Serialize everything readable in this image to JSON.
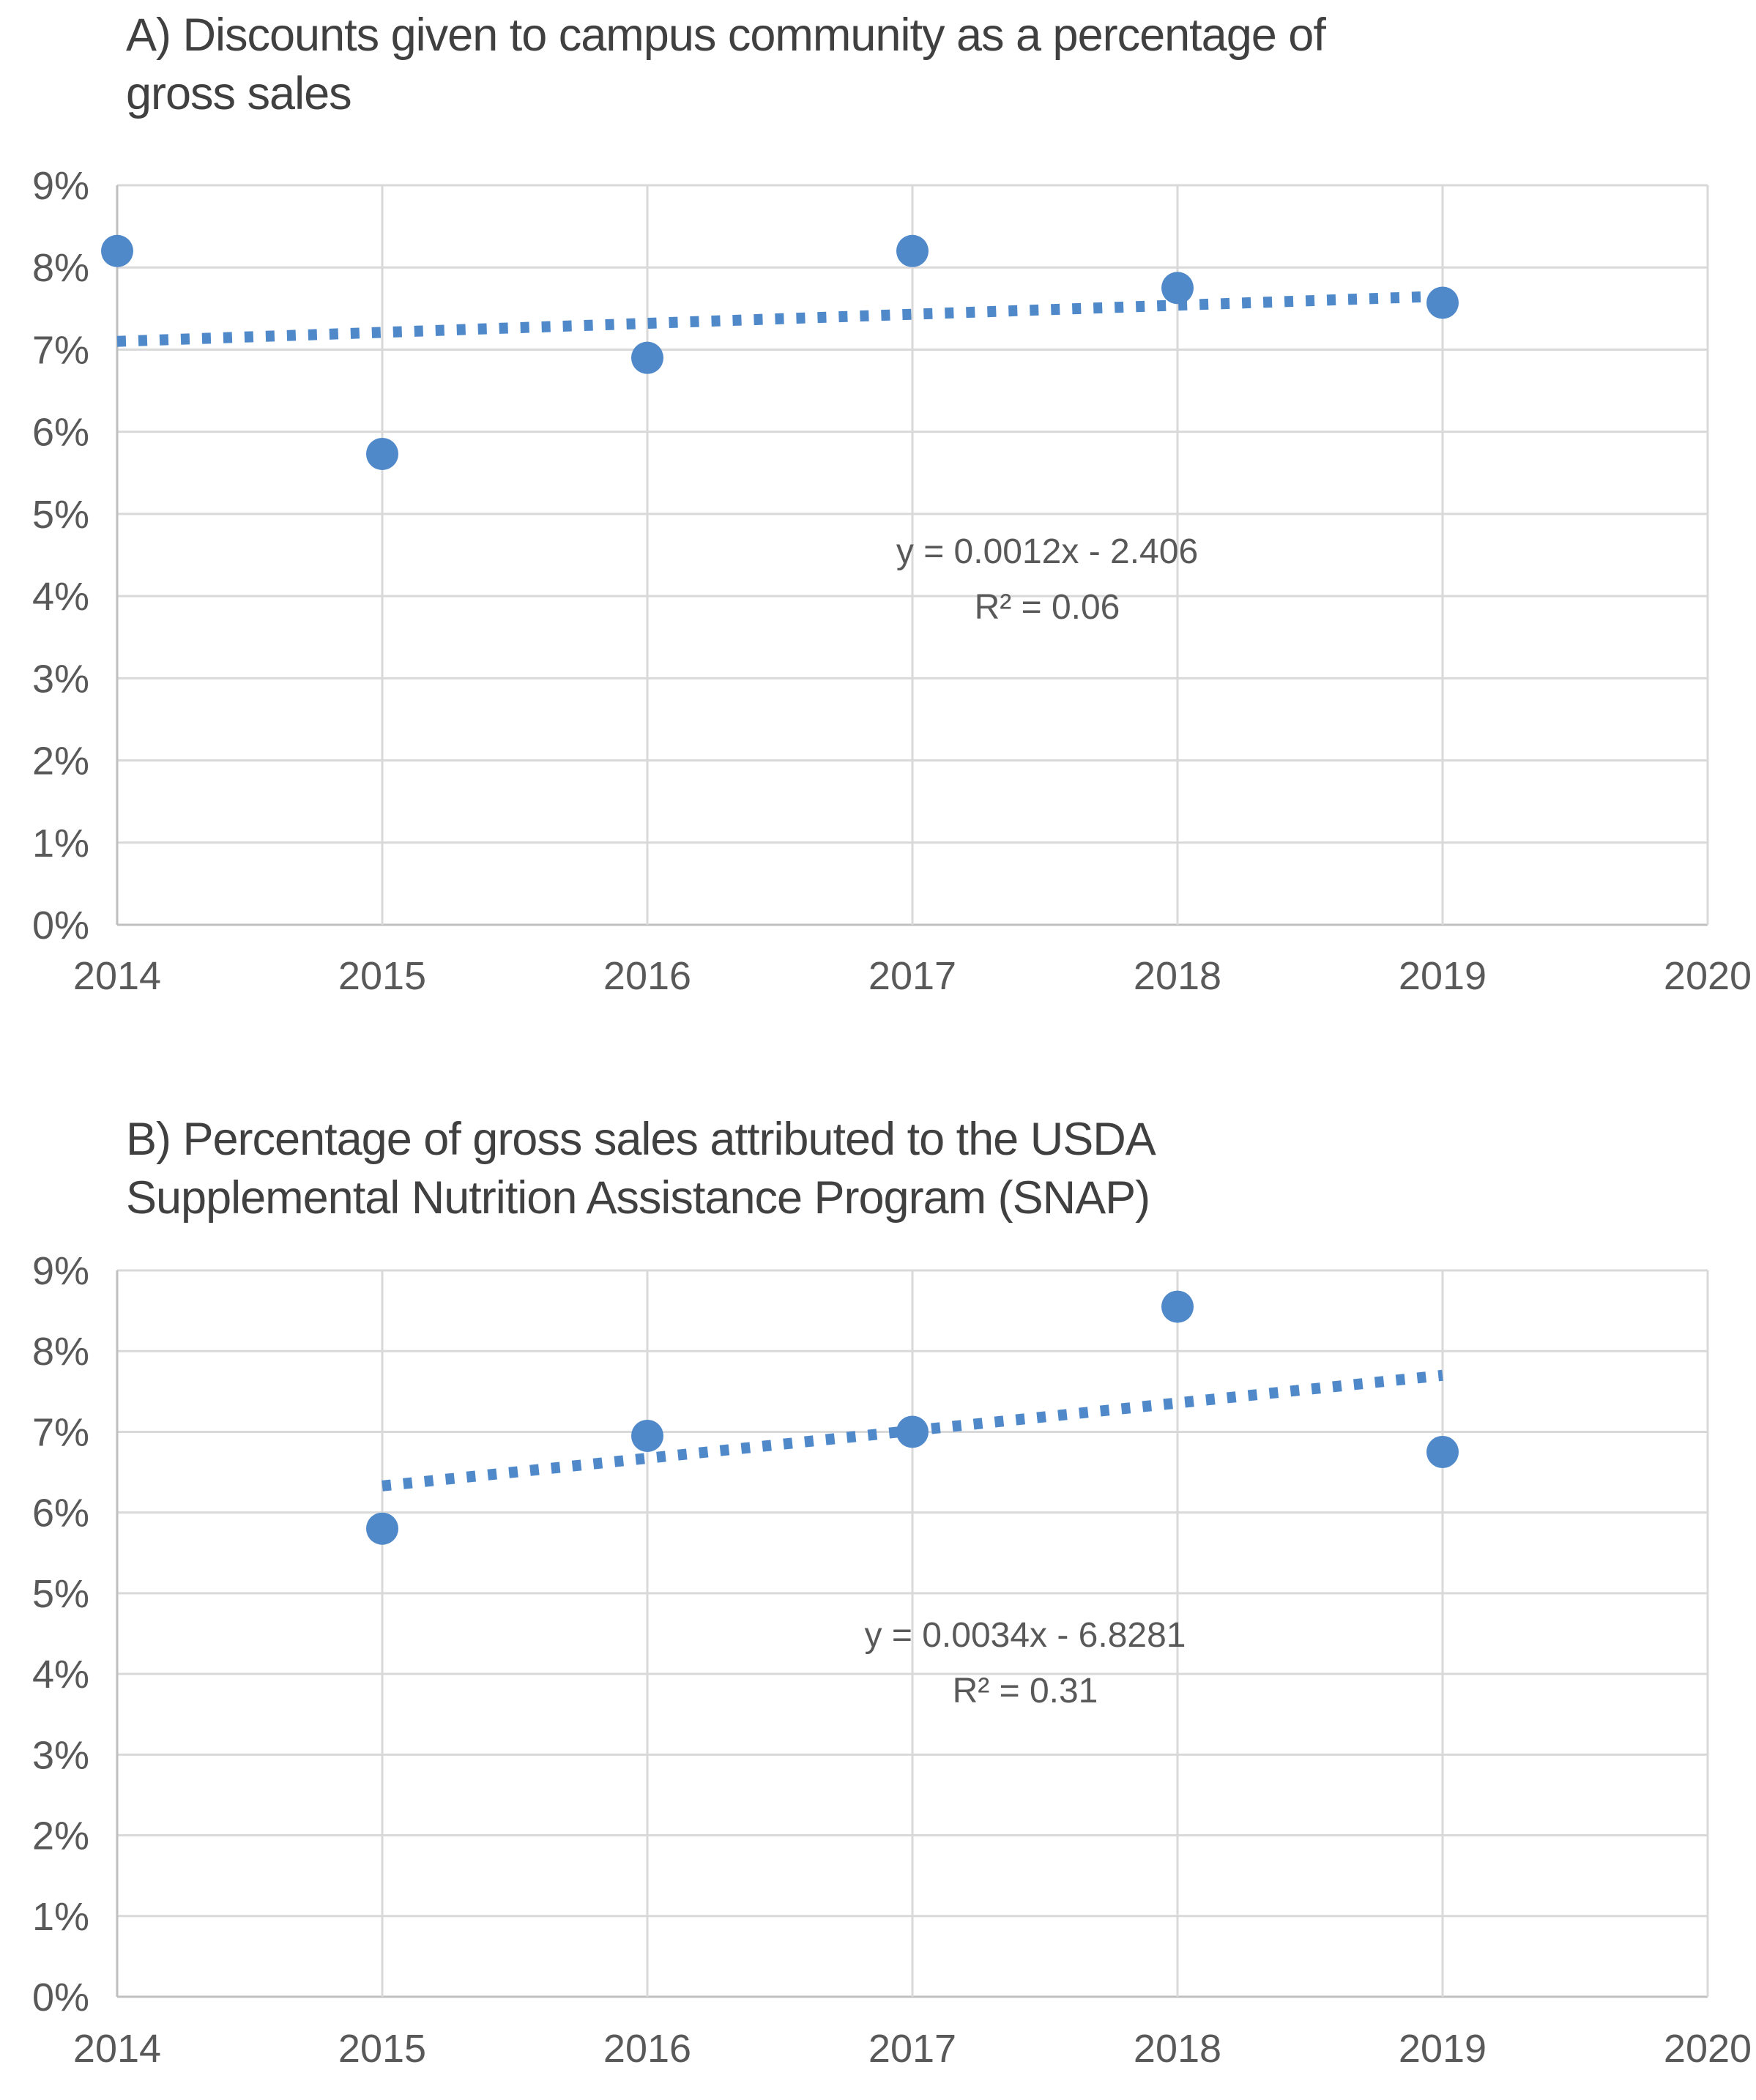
{
  "figure": {
    "background": "#ffffff"
  },
  "chart_data": [
    {
      "id": "A",
      "type": "scatter",
      "title": "A) Discounts given to campus community as a percentage of gross sales",
      "title_line1": "A) Discounts given to campus community as a percentage of",
      "title_line2": "gross sales",
      "x_ticks": [
        "2014",
        "2015",
        "2016",
        "2017",
        "2018",
        "2019",
        "2020"
      ],
      "y_ticks": [
        "9%",
        "8%",
        "7%",
        "6%",
        "5%",
        "4%",
        "3%",
        "2%",
        "1%",
        "0%"
      ],
      "xlim": [
        2014,
        2020
      ],
      "ylim_pct": [
        0,
        9
      ],
      "grid": true,
      "legend": "none",
      "points": [
        {
          "year": 2014,
          "value_pct": 8.2
        },
        {
          "year": 2015,
          "value_pct": 5.73
        },
        {
          "year": 2016,
          "value_pct": 6.9
        },
        {
          "year": 2017,
          "value_pct": 8.2
        },
        {
          "year": 2018,
          "value_pct": 7.75
        },
        {
          "year": 2019,
          "value_pct": 7.57
        }
      ],
      "trendline": {
        "style": "dotted",
        "x_start": 2014,
        "y_start_pct": 7.1,
        "x_end": 2019,
        "y_end_pct": 7.65,
        "equation": "y = 0.0012x - 2.406",
        "r_squared": "R² = 0.06"
      },
      "colors": {
        "marker": "#5089C9",
        "trendline": "#5089C9",
        "gridline": "#D9D9D9",
        "axis_line": "#BFBFBF",
        "tick_text": "#595959",
        "title_text": "#404040",
        "equation_text": "#595959"
      }
    },
    {
      "id": "B",
      "type": "scatter",
      "title": "B) Percentage of gross sales attributed to the USDA Supplemental Nutrition Assistance Program (SNAP)",
      "title_line1": "B) Percentage of gross sales attributed to the USDA",
      "title_line2": "Supplemental Nutrition Assistance Program (SNAP)",
      "x_ticks": [
        "2014",
        "2015",
        "2016",
        "2017",
        "2018",
        "2019",
        "2020"
      ],
      "y_ticks": [
        "9%",
        "8%",
        "7%",
        "6%",
        "5%",
        "4%",
        "3%",
        "2%",
        "1%",
        "0%"
      ],
      "xlim": [
        2014,
        2020
      ],
      "ylim_pct": [
        0,
        9
      ],
      "grid": true,
      "legend": "none",
      "points": [
        {
          "year": 2015,
          "value_pct": 5.8
        },
        {
          "year": 2016,
          "value_pct": 6.95
        },
        {
          "year": 2017,
          "value_pct": 7.0
        },
        {
          "year": 2018,
          "value_pct": 8.55
        },
        {
          "year": 2019,
          "value_pct": 6.75
        }
      ],
      "trendline": {
        "style": "dotted",
        "x_start": 2015,
        "y_start_pct": 6.33,
        "x_end": 2019,
        "y_end_pct": 7.7,
        "equation": "y = 0.0034x - 6.8281",
        "r_squared": "R² = 0.31"
      },
      "colors": {
        "marker": "#5089C9",
        "trendline": "#5089C9",
        "gridline": "#D9D9D9",
        "axis_line": "#BFBFBF",
        "tick_text": "#595959",
        "title_text": "#404040",
        "equation_text": "#595959"
      }
    }
  ]
}
